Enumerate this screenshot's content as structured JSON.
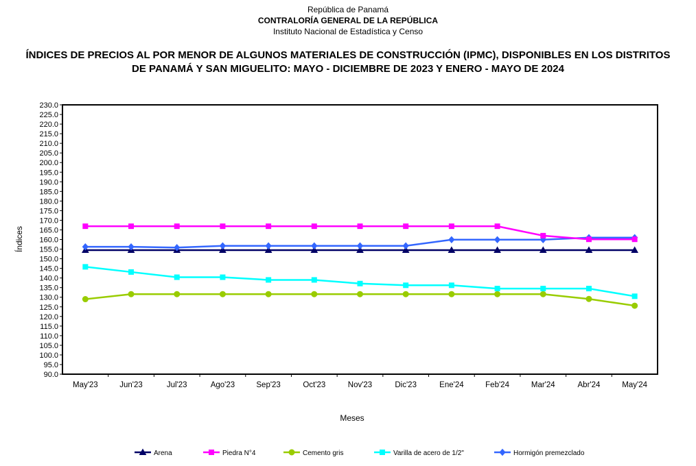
{
  "header": {
    "line1": "República de Panamá",
    "line2": "CONTRALORÍA GENERAL DE LA REPÚBLICA",
    "line3": "Instituto Nacional de Estadística y Censo"
  },
  "chart_data": {
    "type": "line",
    "title": "ÍNDICES DE PRECIOS AL POR MENOR DE ALGUNOS MATERIALES DE CONSTRUCCIÓN  (IPMC), DISPONIBLES EN LOS DISTRITOS DE PANAMÁ Y SAN MIGUELITO: MAYO - DICIEMBRE DE 2023 Y ENERO - MAYO DE 2024",
    "title_lines": [
      "ÍNDICES DE PRECIOS AL POR MENOR DE ALGUNOS MATERIALES DE CONSTRUCCIÓN  (IPMC), DISPONIBLES EN LOS DISTRITOS",
      "DE PANAMÁ Y SAN MIGUELITO: MAYO - DICIEMBRE DE 2023 Y ENERO - MAYO DE 2024"
    ],
    "xlabel": "Meses",
    "ylabel": "Índices",
    "ylim": [
      90,
      230
    ],
    "ytick_step": 5,
    "grid": false,
    "legend_position": "bottom",
    "categories": [
      "May'23",
      "Jun'23",
      "Jul'23",
      "Ago'23",
      "Sep'23",
      "Oct'23",
      "Nov'23",
      "Dic'23",
      "Ene'24",
      "Feb'24",
      "Mar'24",
      "Abr'24",
      "May'24"
    ],
    "series": [
      {
        "name": "Arena",
        "color": "#000066",
        "marker": "triangle",
        "values": [
          154.5,
          154.5,
          154.5,
          154.5,
          154.5,
          154.5,
          154.5,
          154.5,
          154.5,
          154.5,
          154.5,
          154.5,
          154.5
        ]
      },
      {
        "name": "Piedra N°4",
        "color": "#FF00FF",
        "marker": "square",
        "values": [
          166.9,
          166.9,
          166.9,
          166.9,
          166.9,
          166.9,
          166.9,
          166.9,
          166.9,
          166.9,
          162.0,
          160.1,
          160.1
        ]
      },
      {
        "name": "Cemento gris",
        "color": "#99CC00",
        "marker": "circle",
        "values": [
          129.0,
          131.6,
          131.6,
          131.6,
          131.6,
          131.6,
          131.6,
          131.6,
          131.6,
          131.6,
          131.6,
          129.1,
          125.6
        ]
      },
      {
        "name": "Varilla de acero de 1/2\"",
        "color": "#00FFFF",
        "marker": "square",
        "values": [
          145.8,
          143.1,
          140.4,
          140.4,
          139.0,
          139.0,
          137.1,
          136.2,
          136.2,
          134.5,
          134.5,
          134.5,
          130.5
        ]
      },
      {
        "name": "Hormigón premezclado",
        "color": "#3366FF",
        "marker": "diamond",
        "values": [
          156.2,
          156.2,
          155.8,
          156.7,
          156.7,
          156.7,
          156.7,
          156.7,
          159.9,
          159.9,
          159.9,
          161.0,
          161.0
        ]
      }
    ]
  }
}
